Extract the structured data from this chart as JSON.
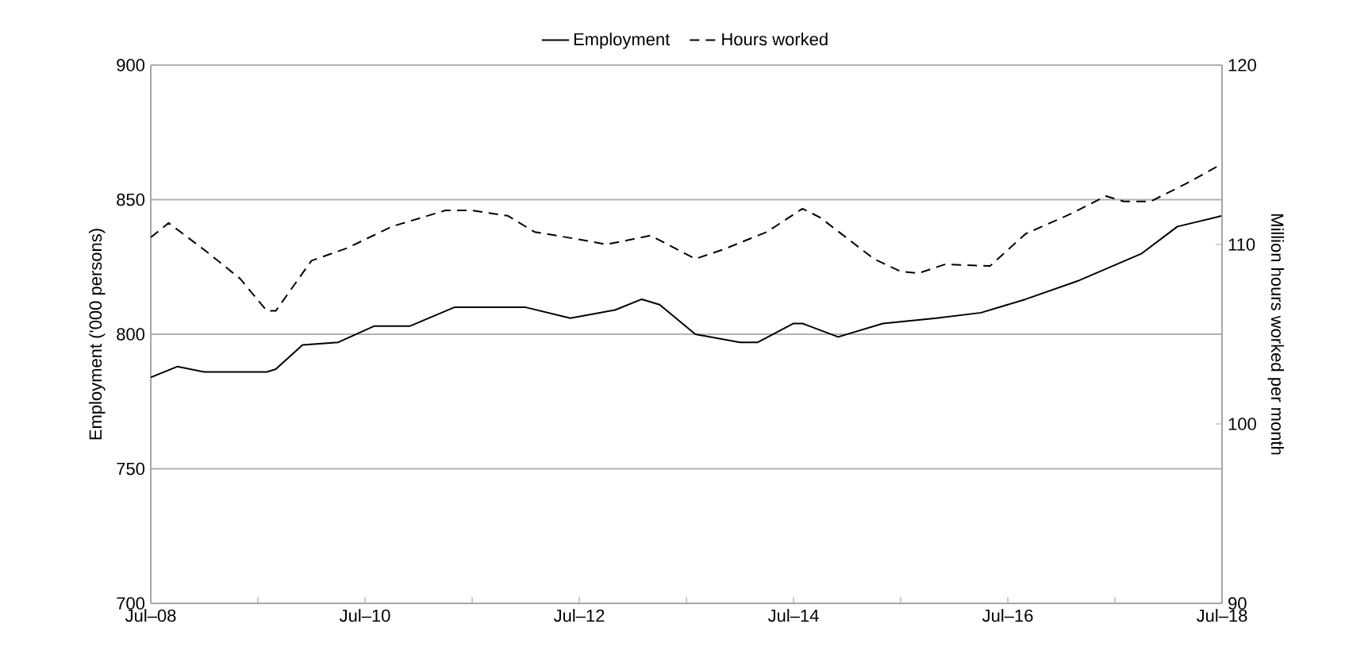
{
  "chart_data": {
    "type": "line",
    "ylabel": "Employment  ('000 persons)",
    "y2label": "Million hours worked per month",
    "ylim": [
      700,
      900
    ],
    "yticks": [
      700,
      750,
      800,
      850,
      900
    ],
    "y2lim": [
      90,
      120
    ],
    "y2ticks": [
      90,
      100,
      110,
      120
    ],
    "xlim": [
      "2008-07",
      "2018-07"
    ],
    "xticks": [
      {
        "value": "2008-07",
        "label": "Jul–08"
      },
      {
        "value": "2009-07",
        "label": null
      },
      {
        "value": "2010-07",
        "label": "Jul–10"
      },
      {
        "value": "2011-07",
        "label": null
      },
      {
        "value": "2012-07",
        "label": "Jul–12"
      },
      {
        "value": "2013-07",
        "label": null
      },
      {
        "value": "2014-07",
        "label": "Jul–14"
      },
      {
        "value": "2015-07",
        "label": null
      },
      {
        "value": "2016-07",
        "label": "Jul–16"
      },
      {
        "value": "2017-07",
        "label": null
      },
      {
        "value": "2018-07",
        "label": "Jul–18"
      }
    ],
    "grid": "y",
    "legend": "top",
    "series": [
      {
        "name": "Employment",
        "color": "#000000",
        "line_style": "solid",
        "x": [
          "2008-07",
          "2008-10",
          "2009-01",
          "2009-08",
          "2009-09",
          "2009-12",
          "2010-04",
          "2010-08",
          "2010-12",
          "2011-05",
          "2012-01",
          "2012-06",
          "2012-11",
          "2013-02",
          "2013-04",
          "2013-08",
          "2014-01",
          "2014-03",
          "2014-07",
          "2014-08",
          "2014-12",
          "2015-05",
          "2015-11",
          "2016-04",
          "2016-09",
          "2017-03",
          "2017-10",
          "2018-02",
          "2018-07"
        ],
        "values": [
          784,
          788,
          786,
          786,
          787,
          796,
          797,
          803,
          803,
          810,
          810,
          806,
          809,
          813,
          811,
          800,
          797,
          797,
          804,
          804,
          799,
          804,
          806,
          808,
          813,
          820,
          830,
          840,
          844
        ]
      },
      {
        "name": "Hours worked",
        "color": "#000000",
        "line_style": "dashed",
        "axis": "y2",
        "x": [
          "2008-07",
          "2008-09",
          "2009-01",
          "2009-05",
          "2009-08",
          "2009-09",
          "2010-01",
          "2010-05",
          "2010-10",
          "2011-04",
          "2011-07",
          "2011-11",
          "2012-02",
          "2012-08",
          "2012-10",
          "2013-03",
          "2013-08",
          "2013-11",
          "2014-04",
          "2014-08",
          "2014-10",
          "2015-04",
          "2015-07",
          "2015-09",
          "2015-12",
          "2016-05",
          "2016-09",
          "2017-02",
          "2017-06",
          "2017-08",
          "2017-11",
          "2018-03",
          "2018-07"
        ],
        "values": [
          110.4,
          111.2,
          109.7,
          108.1,
          106.3,
          106.3,
          109.1,
          109.8,
          111.0,
          111.9,
          111.9,
          111.6,
          110.7,
          110.2,
          110.0,
          110.5,
          109.2,
          109.7,
          110.7,
          112.0,
          111.5,
          109.2,
          108.5,
          108.4,
          108.9,
          108.8,
          110.6,
          111.7,
          112.7,
          112.4,
          112.4,
          113.4,
          114.5
        ]
      }
    ]
  }
}
